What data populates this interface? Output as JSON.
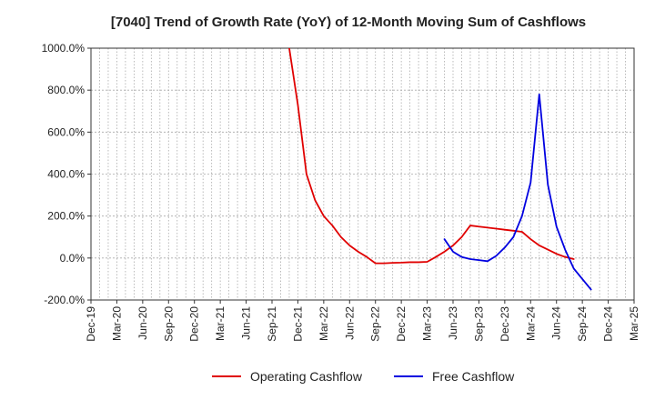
{
  "chart_data": {
    "type": "line",
    "title": "[7040]  Trend of Growth Rate (YoY) of 12-Month Moving Sum of Cashflows",
    "xlabel": "",
    "ylabel": "",
    "ylim": [
      -200,
      1000
    ],
    "y_ticks": [
      1000,
      800,
      600,
      400,
      200,
      0,
      -200
    ],
    "y_tick_labels": [
      "1000.0%",
      "800.0%",
      "600.0%",
      "400.0%",
      "200.0%",
      "0.0%",
      "-200.0%"
    ],
    "x_tick_labels": [
      "Dec-19",
      "Mar-20",
      "Jun-20",
      "Sep-20",
      "Dec-20",
      "Mar-21",
      "Jun-21",
      "Sep-21",
      "Dec-21",
      "Mar-22",
      "Jun-22",
      "Sep-22",
      "Dec-22",
      "Mar-23",
      "Jun-23",
      "Sep-23",
      "Dec-23",
      "Mar-24",
      "Jun-24",
      "Sep-24",
      "Dec-24",
      "Mar-25"
    ],
    "x_range": [
      "2019-12",
      "2025-03"
    ],
    "grid": true,
    "legend_position": "bottom",
    "series": [
      {
        "name": "Operating Cashflow",
        "color": "#e00000",
        "points": [
          [
            "2021-11",
            1000
          ],
          [
            "2021-12",
            730
          ],
          [
            "2022-01",
            400
          ],
          [
            "2022-02",
            275
          ],
          [
            "2022-03",
            200
          ],
          [
            "2022-04",
            155
          ],
          [
            "2022-05",
            100
          ],
          [
            "2022-06",
            60
          ],
          [
            "2022-07",
            30
          ],
          [
            "2022-08",
            5
          ],
          [
            "2022-09",
            -25
          ],
          [
            "2022-10",
            -25
          ],
          [
            "2022-11",
            -23
          ],
          [
            "2022-12",
            -22
          ],
          [
            "2023-01",
            -20
          ],
          [
            "2023-02",
            -20
          ],
          [
            "2023-03",
            -18
          ],
          [
            "2023-04",
            5
          ],
          [
            "2023-05",
            30
          ],
          [
            "2023-06",
            60
          ],
          [
            "2023-07",
            100
          ],
          [
            "2023-08",
            155
          ],
          [
            "2023-09",
            150
          ],
          [
            "2023-10",
            145
          ],
          [
            "2023-11",
            140
          ],
          [
            "2023-12",
            135
          ],
          [
            "2024-01",
            130
          ],
          [
            "2024-02",
            125
          ],
          [
            "2024-03",
            90
          ],
          [
            "2024-04",
            60
          ],
          [
            "2024-05",
            40
          ],
          [
            "2024-06",
            20
          ],
          [
            "2024-07",
            5
          ],
          [
            "2024-08",
            -5
          ]
        ]
      },
      {
        "name": "Free Cashflow",
        "color": "#0000e0",
        "points": [
          [
            "2023-05",
            90
          ],
          [
            "2023-06",
            30
          ],
          [
            "2023-07",
            5
          ],
          [
            "2023-08",
            -5
          ],
          [
            "2023-09",
            -10
          ],
          [
            "2023-10",
            -15
          ],
          [
            "2023-11",
            10
          ],
          [
            "2023-12",
            50
          ],
          [
            "2024-01",
            100
          ],
          [
            "2024-02",
            200
          ],
          [
            "2024-03",
            360
          ],
          [
            "2024-04",
            780
          ],
          [
            "2024-05",
            350
          ],
          [
            "2024-06",
            150
          ],
          [
            "2024-07",
            40
          ],
          [
            "2024-08",
            -50
          ],
          [
            "2024-09",
            -100
          ],
          [
            "2024-10",
            -150
          ]
        ]
      }
    ]
  }
}
